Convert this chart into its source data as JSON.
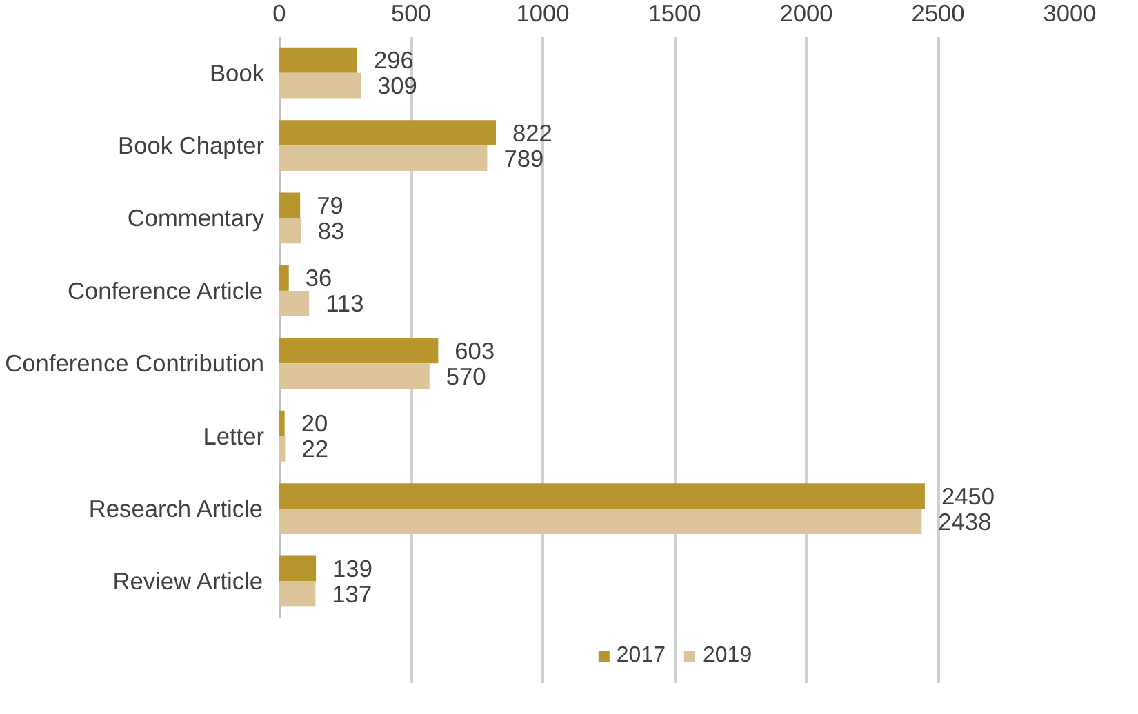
{
  "chart_data": {
    "type": "bar",
    "orientation": "horizontal",
    "categories": [
      "Book",
      "Book Chapter",
      "Commentary",
      "Conference Article",
      "Conference Contribution",
      "Letter",
      "Research Article",
      "Review Article"
    ],
    "series": [
      {
        "name": "2017",
        "color": "#b8962e",
        "values": [
          296,
          822,
          79,
          36,
          603,
          20,
          2450,
          139
        ]
      },
      {
        "name": "2019",
        "color": "#dcc59a",
        "values": [
          309,
          789,
          83,
          113,
          570,
          22,
          2438,
          137
        ]
      }
    ],
    "xlim": [
      0,
      3000
    ],
    "xticks": [
      0,
      500,
      1000,
      1500,
      2000,
      2500,
      3000
    ],
    "grid": "x",
    "legend": "bottom",
    "data_labels": true
  }
}
